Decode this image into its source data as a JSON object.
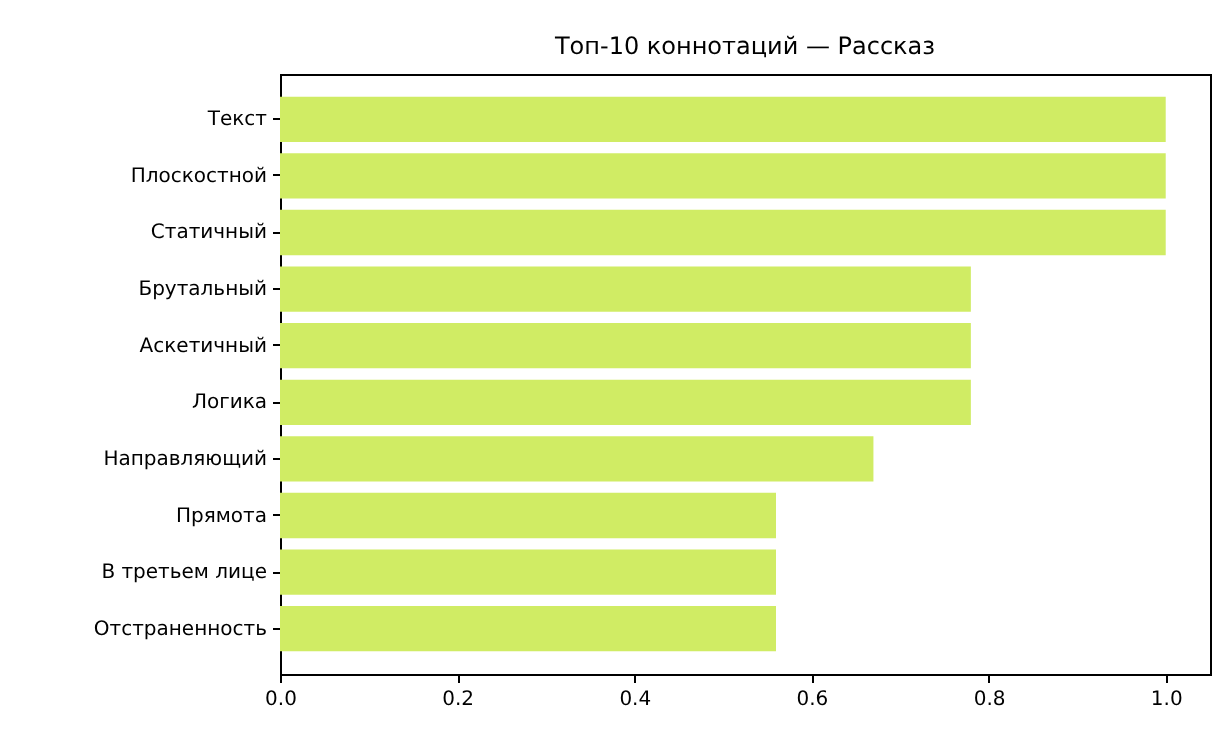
{
  "chart_data": {
    "type": "bar",
    "orientation": "horizontal",
    "title": "Топ-10 коннотаций — Рассказ",
    "categories": [
      "Текст",
      "Плоскостной",
      "Статичный",
      "Брутальный",
      "Аскетичный",
      "Логика",
      "Направляющий",
      "Прямота",
      "В третьем лице",
      "Отстраненность"
    ],
    "values": [
      1,
      1,
      1,
      0.78,
      0.78,
      0.78,
      0.67,
      0.56,
      0.56,
      0.56
    ],
    "color": "#d0ec64",
    "xlim": [
      0,
      1.05
    ],
    "xticks": [
      {
        "value": 0,
        "label": "0.0"
      },
      {
        "value": 0.2,
        "label": "0.2"
      },
      {
        "value": 0.4,
        "label": "0.4"
      },
      {
        "value": 0.6,
        "label": "0.6"
      },
      {
        "value": 0.8,
        "label": "0.8"
      },
      {
        "value": 1,
        "label": "1.0"
      }
    ],
    "grid": false
  }
}
